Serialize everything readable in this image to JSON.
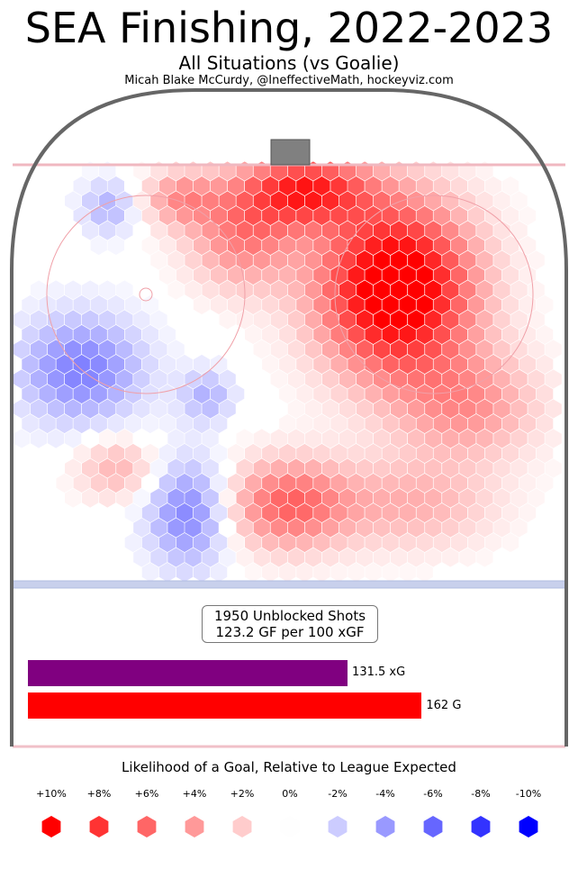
{
  "header": {
    "title": "SEA Finishing, 2022-2023",
    "subtitle": "All Situations (vs Goalie)",
    "credit": "Micah Blake McCurdy, @IneffectiveMath, hockeyviz.com"
  },
  "summary": {
    "shots_line": "1950 Unblocked Shots",
    "rate_line": "123.2 GF per 100 xGF",
    "xg_value": 131.5,
    "xg_label": "131.5 xG",
    "goals_value": 162,
    "goals_label": "162 G",
    "xg_color": "#800080",
    "goals_color": "#ff0000"
  },
  "legend": {
    "title": "Likelihood of a Goal, Relative to League Expected",
    "items": [
      {
        "label": "+10%",
        "color": "#ff0000"
      },
      {
        "label": "+8%",
        "color": "#ff3333"
      },
      {
        "label": "+6%",
        "color": "#ff6666"
      },
      {
        "label": "+4%",
        "color": "#ff9999"
      },
      {
        "label": "+2%",
        "color": "#ffcccc"
      },
      {
        "label": "0%",
        "color": "#fefefe"
      },
      {
        "label": "-2%",
        "color": "#ccccff"
      },
      {
        "label": "-4%",
        "color": "#9999ff"
      },
      {
        "label": "-6%",
        "color": "#6666ff"
      },
      {
        "label": "-8%",
        "color": "#3333ff"
      },
      {
        "label": "-10%",
        "color": "#0000ff"
      }
    ]
  },
  "chart_data": {
    "type": "heatmap",
    "description_units": "relative goal likelihood vs league expected, percent",
    "range": [
      -10,
      10
    ],
    "hotspots": [
      {
        "region": "slot and right circle",
        "value": 10
      },
      {
        "region": "crease front",
        "value": 8
      },
      {
        "region": "left circle top",
        "value": 6
      },
      {
        "region": "left circle",
        "value": 2
      },
      {
        "region": "left wall / left point",
        "value": -4
      },
      {
        "region": "left high slot",
        "value": -5
      },
      {
        "region": "center point",
        "value": 4
      },
      {
        "region": "right point",
        "value": 2
      }
    ]
  }
}
